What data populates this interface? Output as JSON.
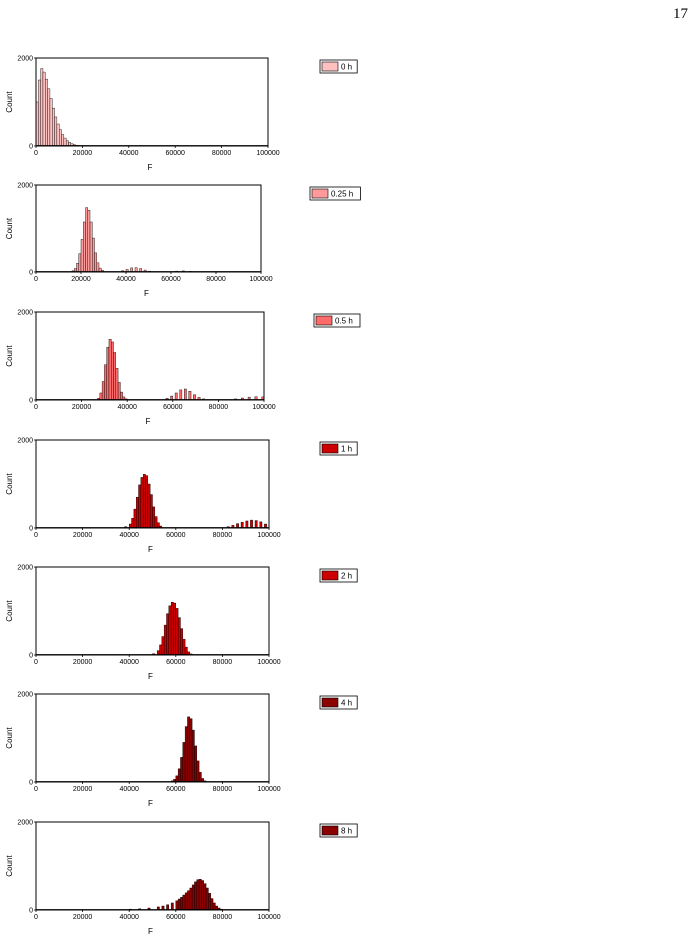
{
  "page_number": "17",
  "chart_data": [
    {
      "type": "bar",
      "legend": "0 h",
      "color": "#ffc0c0",
      "xlabel": "F",
      "ylabel": "Count",
      "xlim": [
        0,
        100000
      ],
      "ylim": [
        0,
        2000
      ],
      "x_ticks": [
        "0",
        "20000",
        "40000",
        "60000",
        "80000",
        "100000"
      ],
      "y_ticks": [
        "0",
        "2000"
      ],
      "bin_width": 1000,
      "bins": [
        {
          "x": 500,
          "y": 1000
        },
        {
          "x": 1500,
          "y": 1500
        },
        {
          "x": 2500,
          "y": 1760
        },
        {
          "x": 3500,
          "y": 1680
        },
        {
          "x": 4500,
          "y": 1520
        },
        {
          "x": 5500,
          "y": 1300
        },
        {
          "x": 6500,
          "y": 1080
        },
        {
          "x": 7500,
          "y": 860
        },
        {
          "x": 8500,
          "y": 660
        },
        {
          "x": 9500,
          "y": 500
        },
        {
          "x": 10500,
          "y": 370
        },
        {
          "x": 11500,
          "y": 260
        },
        {
          "x": 12500,
          "y": 180
        },
        {
          "x": 13500,
          "y": 120
        },
        {
          "x": 14500,
          "y": 80
        },
        {
          "x": 15500,
          "y": 50
        },
        {
          "x": 16500,
          "y": 30
        },
        {
          "x": 17500,
          "y": 18
        },
        {
          "x": 18500,
          "y": 10
        }
      ]
    },
    {
      "type": "bar",
      "legend": "0.25 h",
      "color": "#ff9a9a",
      "xlabel": "F",
      "ylabel": "Count",
      "xlim": [
        0,
        100000
      ],
      "ylim": [
        0,
        2000
      ],
      "x_ticks": [
        "0",
        "20000",
        "40000",
        "60000",
        "80000",
        "100000"
      ],
      "y_ticks": [
        "0",
        "2000"
      ],
      "bin_width": 1000,
      "bins": [
        {
          "x": 16500,
          "y": 30
        },
        {
          "x": 17500,
          "y": 80
        },
        {
          "x": 18500,
          "y": 200
        },
        {
          "x": 19500,
          "y": 420
        },
        {
          "x": 20500,
          "y": 750
        },
        {
          "x": 21500,
          "y": 1150
        },
        {
          "x": 22500,
          "y": 1480
        },
        {
          "x": 23500,
          "y": 1420
        },
        {
          "x": 24500,
          "y": 1150
        },
        {
          "x": 25500,
          "y": 780
        },
        {
          "x": 26500,
          "y": 440
        },
        {
          "x": 27500,
          "y": 210
        },
        {
          "x": 28500,
          "y": 90
        },
        {
          "x": 29500,
          "y": 40
        },
        {
          "x": 38500,
          "y": 30
        },
        {
          "x": 40500,
          "y": 60
        },
        {
          "x": 42500,
          "y": 95
        },
        {
          "x": 44500,
          "y": 100
        },
        {
          "x": 46500,
          "y": 80
        },
        {
          "x": 48500,
          "y": 45
        },
        {
          "x": 50500,
          "y": 20
        },
        {
          "x": 62500,
          "y": 20
        },
        {
          "x": 65500,
          "y": 25
        },
        {
          "x": 68500,
          "y": 15
        }
      ]
    },
    {
      "type": "bar",
      "legend": "0.5 h",
      "color": "#ff6a6a",
      "xlabel": "F",
      "ylabel": "Count",
      "xlim": [
        0,
        100000
      ],
      "ylim": [
        0,
        2000
      ],
      "x_ticks": [
        "0",
        "20000",
        "40000",
        "60000",
        "80000",
        "100000"
      ],
      "y_ticks": [
        "0",
        "2000"
      ],
      "bin_width": 1000,
      "bins": [
        {
          "x": 27500,
          "y": 40
        },
        {
          "x": 28500,
          "y": 160
        },
        {
          "x": 29500,
          "y": 420
        },
        {
          "x": 30500,
          "y": 800
        },
        {
          "x": 31500,
          "y": 1200
        },
        {
          "x": 32500,
          "y": 1380
        },
        {
          "x": 33500,
          "y": 1320
        },
        {
          "x": 34500,
          "y": 1080
        },
        {
          "x": 35500,
          "y": 720
        },
        {
          "x": 36500,
          "y": 400
        },
        {
          "x": 37500,
          "y": 180
        },
        {
          "x": 38500,
          "y": 70
        },
        {
          "x": 39500,
          "y": 25
        },
        {
          "x": 57500,
          "y": 40
        },
        {
          "x": 59500,
          "y": 90
        },
        {
          "x": 61500,
          "y": 160
        },
        {
          "x": 63500,
          "y": 230
        },
        {
          "x": 65500,
          "y": 250
        },
        {
          "x": 67500,
          "y": 200
        },
        {
          "x": 69500,
          "y": 120
        },
        {
          "x": 71500,
          "y": 60
        },
        {
          "x": 73500,
          "y": 25
        },
        {
          "x": 87500,
          "y": 25
        },
        {
          "x": 90500,
          "y": 45
        },
        {
          "x": 93500,
          "y": 65
        },
        {
          "x": 96500,
          "y": 75
        },
        {
          "x": 99500,
          "y": 70
        }
      ]
    },
    {
      "type": "bar",
      "legend": "1 h",
      "color": "#cc0000",
      "xlabel": "F",
      "ylabel": "Count",
      "xlim": [
        0,
        100000
      ],
      "ylim": [
        0,
        2000
      ],
      "x_ticks": [
        "0",
        "20000",
        "40000",
        "60000",
        "80000",
        "100000"
      ],
      "y_ticks": [
        "0",
        "2000"
      ],
      "bin_width": 1000,
      "bins": [
        {
          "x": 38500,
          "y": 30
        },
        {
          "x": 40500,
          "y": 90
        },
        {
          "x": 41500,
          "y": 220
        },
        {
          "x": 42500,
          "y": 430
        },
        {
          "x": 43500,
          "y": 700
        },
        {
          "x": 44500,
          "y": 980
        },
        {
          "x": 45500,
          "y": 1150
        },
        {
          "x": 46500,
          "y": 1220
        },
        {
          "x": 47500,
          "y": 1190
        },
        {
          "x": 48500,
          "y": 1000
        },
        {
          "x": 49500,
          "y": 760
        },
        {
          "x": 50500,
          "y": 480
        },
        {
          "x": 51500,
          "y": 260
        },
        {
          "x": 52500,
          "y": 120
        },
        {
          "x": 53500,
          "y": 45
        },
        {
          "x": 82500,
          "y": 30
        },
        {
          "x": 84500,
          "y": 60
        },
        {
          "x": 86500,
          "y": 100
        },
        {
          "x": 88500,
          "y": 130
        },
        {
          "x": 90500,
          "y": 160
        },
        {
          "x": 92500,
          "y": 180
        },
        {
          "x": 94500,
          "y": 170
        },
        {
          "x": 96500,
          "y": 140
        },
        {
          "x": 98500,
          "y": 90
        }
      ]
    },
    {
      "type": "bar",
      "legend": "2 h",
      "color": "#cc0000",
      "xlabel": "F",
      "ylabel": "Count",
      "xlim": [
        0,
        100000
      ],
      "ylim": [
        0,
        2000
      ],
      "x_ticks": [
        "0",
        "20000",
        "40000",
        "60000",
        "80000",
        "100000"
      ],
      "y_ticks": [
        "0",
        "2000"
      ],
      "bin_width": 1000,
      "bins": [
        {
          "x": 50500,
          "y": 30
        },
        {
          "x": 52500,
          "y": 100
        },
        {
          "x": 53500,
          "y": 230
        },
        {
          "x": 54500,
          "y": 420
        },
        {
          "x": 55500,
          "y": 680
        },
        {
          "x": 56500,
          "y": 940
        },
        {
          "x": 57500,
          "y": 1120
        },
        {
          "x": 58500,
          "y": 1200
        },
        {
          "x": 59500,
          "y": 1180
        },
        {
          "x": 60500,
          "y": 1060
        },
        {
          "x": 61500,
          "y": 850
        },
        {
          "x": 62500,
          "y": 600
        },
        {
          "x": 63500,
          "y": 360
        },
        {
          "x": 64500,
          "y": 180
        },
        {
          "x": 65500,
          "y": 70
        },
        {
          "x": 66500,
          "y": 25
        }
      ]
    },
    {
      "type": "bar",
      "legend": "4 h",
      "color": "#8b0000",
      "xlabel": "F",
      "ylabel": "Count",
      "xlim": [
        0,
        100000
      ],
      "ylim": [
        0,
        2000
      ],
      "x_ticks": [
        "0",
        "20000",
        "40000",
        "60000",
        "80000",
        "100000"
      ],
      "y_ticks": [
        "0",
        "2000"
      ],
      "bin_width": 1000,
      "bins": [
        {
          "x": 58500,
          "y": 25
        },
        {
          "x": 59500,
          "y": 60
        },
        {
          "x": 60500,
          "y": 140
        },
        {
          "x": 61500,
          "y": 300
        },
        {
          "x": 62500,
          "y": 560
        },
        {
          "x": 63500,
          "y": 900
        },
        {
          "x": 64500,
          "y": 1260
        },
        {
          "x": 65500,
          "y": 1480
        },
        {
          "x": 66500,
          "y": 1440
        },
        {
          "x": 67500,
          "y": 1180
        },
        {
          "x": 68500,
          "y": 820
        },
        {
          "x": 69500,
          "y": 480
        },
        {
          "x": 70500,
          "y": 220
        },
        {
          "x": 71500,
          "y": 80
        },
        {
          "x": 72500,
          "y": 25
        }
      ]
    },
    {
      "type": "bar",
      "legend": "8 h",
      "color": "#8b0000",
      "xlabel": "F",
      "ylabel": "Count",
      "xlim": [
        0,
        100000
      ],
      "ylim": [
        0,
        2000
      ],
      "x_ticks": [
        "0",
        "20000",
        "40000",
        "60000",
        "80000",
        "100000"
      ],
      "y_ticks": [
        "0",
        "2000"
      ],
      "bin_width": 1000,
      "bins": [
        {
          "x": 40500,
          "y": 20
        },
        {
          "x": 44500,
          "y": 30
        },
        {
          "x": 48500,
          "y": 45
        },
        {
          "x": 52500,
          "y": 70
        },
        {
          "x": 54500,
          "y": 90
        },
        {
          "x": 56500,
          "y": 120
        },
        {
          "x": 58500,
          "y": 160
        },
        {
          "x": 60500,
          "y": 210
        },
        {
          "x": 61500,
          "y": 250
        },
        {
          "x": 62500,
          "y": 290
        },
        {
          "x": 63500,
          "y": 340
        },
        {
          "x": 64500,
          "y": 390
        },
        {
          "x": 65500,
          "y": 440
        },
        {
          "x": 66500,
          "y": 500
        },
        {
          "x": 67500,
          "y": 570
        },
        {
          "x": 68500,
          "y": 640
        },
        {
          "x": 69500,
          "y": 690
        },
        {
          "x": 70500,
          "y": 700
        },
        {
          "x": 71500,
          "y": 670
        },
        {
          "x": 72500,
          "y": 600
        },
        {
          "x": 73500,
          "y": 500
        },
        {
          "x": 74500,
          "y": 380
        },
        {
          "x": 75500,
          "y": 260
        },
        {
          "x": 76500,
          "y": 160
        },
        {
          "x": 77500,
          "y": 90
        },
        {
          "x": 78500,
          "y": 45
        },
        {
          "x": 79500,
          "y": 20
        }
      ]
    }
  ]
}
